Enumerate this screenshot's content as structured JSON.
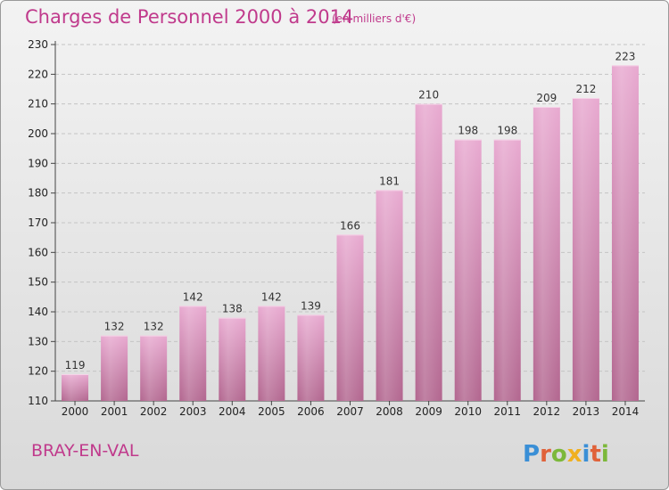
{
  "header": {
    "title": "Charges de Personnel 2000 à 2014",
    "subtitle": "(en milliers d'€)"
  },
  "footer": {
    "commune": "BRAY-EN-VAL",
    "logo_text": "Proxiti"
  },
  "colors": {
    "accent": "#c03a8c",
    "bar_top": "#e8a9d0",
    "bar_bottom": "#b2668f",
    "logo_p": "#3a8fd6",
    "logo_r": "#e0623a",
    "logo_o": "#7cb83a",
    "logo_x": "#f0b020",
    "logo_i": "#3a8fd6",
    "logo_t": "#e0623a",
    "logo_i2": "#7cb83a"
  },
  "chart_data": {
    "type": "bar",
    "categories": [
      "2000",
      "2001",
      "2002",
      "2003",
      "2004",
      "2005",
      "2006",
      "2007",
      "2008",
      "2009",
      "2010",
      "2011",
      "2012",
      "2013",
      "2014"
    ],
    "values": [
      119,
      132,
      132,
      142,
      138,
      142,
      139,
      166,
      181,
      210,
      198,
      198,
      209,
      212,
      223
    ],
    "ylim": [
      110,
      230
    ],
    "yticks": [
      110,
      120,
      130,
      140,
      150,
      160,
      170,
      180,
      190,
      200,
      210,
      220,
      230
    ],
    "grid": true
  }
}
